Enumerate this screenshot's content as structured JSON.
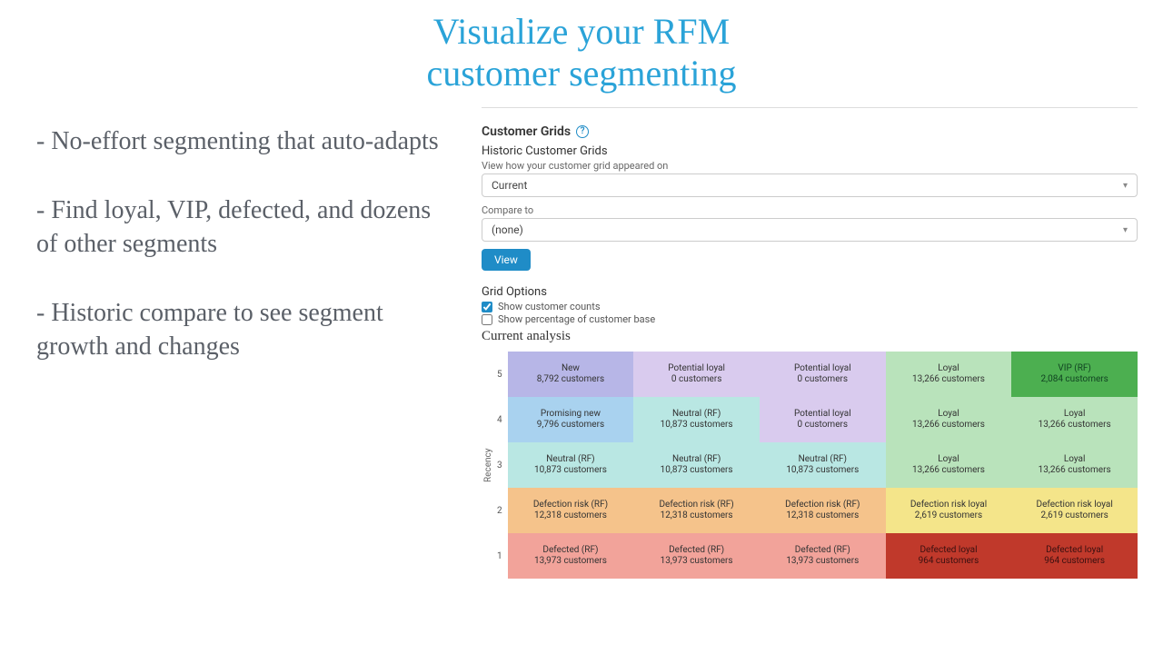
{
  "headline_line1": "Visualize your RFM",
  "headline_line2": "customer segmenting",
  "headline_color": "#2aa3d8",
  "bullets": [
    "- No-effort segmenting that auto-adapts",
    "- Find loyal, VIP, defected, and dozens of other segments",
    "- Historic compare to see segment growth and changes"
  ],
  "panel": {
    "title": "Customer Grids",
    "subtitle": "Historic Customer Grids",
    "view_label": "View how your customer grid appeared on",
    "compare_label": "Compare to",
    "date_select_value": "Current",
    "compare_select_value": "(none)",
    "view_button": "View",
    "grid_options_title": "Grid Options",
    "checkbox1_label": "Show customer counts",
    "checkbox2_label": "Show percentage of customer base",
    "current_analysis_title": "Current analysis",
    "axis_label": "Recency",
    "help_icon_glyph": "?",
    "help_icon_name": "help-icon"
  },
  "grid": {
    "row_labels": [
      "5",
      "4",
      "3",
      "2",
      "1"
    ],
    "rows": [
      [
        {
          "name": "New",
          "count": "8,792 customers",
          "bg": "#b7b6e7",
          "fg": "#333"
        },
        {
          "name": "Potential loyal",
          "count": "0 customers",
          "bg": "#d9cbee",
          "fg": "#333"
        },
        {
          "name": "Potential loyal",
          "count": "0 customers",
          "bg": "#d9cbee",
          "fg": "#333"
        },
        {
          "name": "Loyal",
          "count": "13,266 customers",
          "bg": "#b9e3bb",
          "fg": "#333"
        },
        {
          "name": "VIP (RF)",
          "count": "2,084 customers",
          "bg": "#4caf50",
          "fg": "#142"
        }
      ],
      [
        {
          "name": "Promising new",
          "count": "9,796 customers",
          "bg": "#a9d2ef",
          "fg": "#333"
        },
        {
          "name": "Neutral (RF)",
          "count": "10,873 customers",
          "bg": "#b9e7e3",
          "fg": "#333"
        },
        {
          "name": "Potential loyal",
          "count": "0 customers",
          "bg": "#d9cbee",
          "fg": "#333"
        },
        {
          "name": "Loyal",
          "count": "13,266 customers",
          "bg": "#b9e3bb",
          "fg": "#333"
        },
        {
          "name": "Loyal",
          "count": "13,266 customers",
          "bg": "#b9e3bb",
          "fg": "#333"
        }
      ],
      [
        {
          "name": "Neutral (RF)",
          "count": "10,873 customers",
          "bg": "#b9e7e3",
          "fg": "#333"
        },
        {
          "name": "Neutral (RF)",
          "count": "10,873 customers",
          "bg": "#b9e7e3",
          "fg": "#333"
        },
        {
          "name": "Neutral (RF)",
          "count": "10,873 customers",
          "bg": "#b9e7e3",
          "fg": "#333"
        },
        {
          "name": "Loyal",
          "count": "13,266 customers",
          "bg": "#b9e3bb",
          "fg": "#333"
        },
        {
          "name": "Loyal",
          "count": "13,266 customers",
          "bg": "#b9e3bb",
          "fg": "#333"
        }
      ],
      [
        {
          "name": "Defection risk (RF)",
          "count": "12,318 customers",
          "bg": "#f5c38b",
          "fg": "#333"
        },
        {
          "name": "Defection risk (RF)",
          "count": "12,318 customers",
          "bg": "#f5c38b",
          "fg": "#333"
        },
        {
          "name": "Defection risk (RF)",
          "count": "12,318 customers",
          "bg": "#f5c38b",
          "fg": "#333"
        },
        {
          "name": "Defection risk loyal",
          "count": "2,619 customers",
          "bg": "#f4e58a",
          "fg": "#333"
        },
        {
          "name": "Defection risk loyal",
          "count": "2,619 customers",
          "bg": "#f4e58a",
          "fg": "#333"
        }
      ],
      [
        {
          "name": "Defected (RF)",
          "count": "13,973 customers",
          "bg": "#f2a39a",
          "fg": "#333"
        },
        {
          "name": "Defected (RF)",
          "count": "13,973 customers",
          "bg": "#f2a39a",
          "fg": "#333"
        },
        {
          "name": "Defected (RF)",
          "count": "13,973 customers",
          "bg": "#f2a39a",
          "fg": "#333"
        },
        {
          "name": "Defected loyal",
          "count": "964 customers",
          "bg": "#c0392b",
          "fg": "#3a1010"
        },
        {
          "name": "Defected loyal",
          "count": "964 customers",
          "bg": "#c0392b",
          "fg": "#3a1010"
        }
      ]
    ]
  }
}
